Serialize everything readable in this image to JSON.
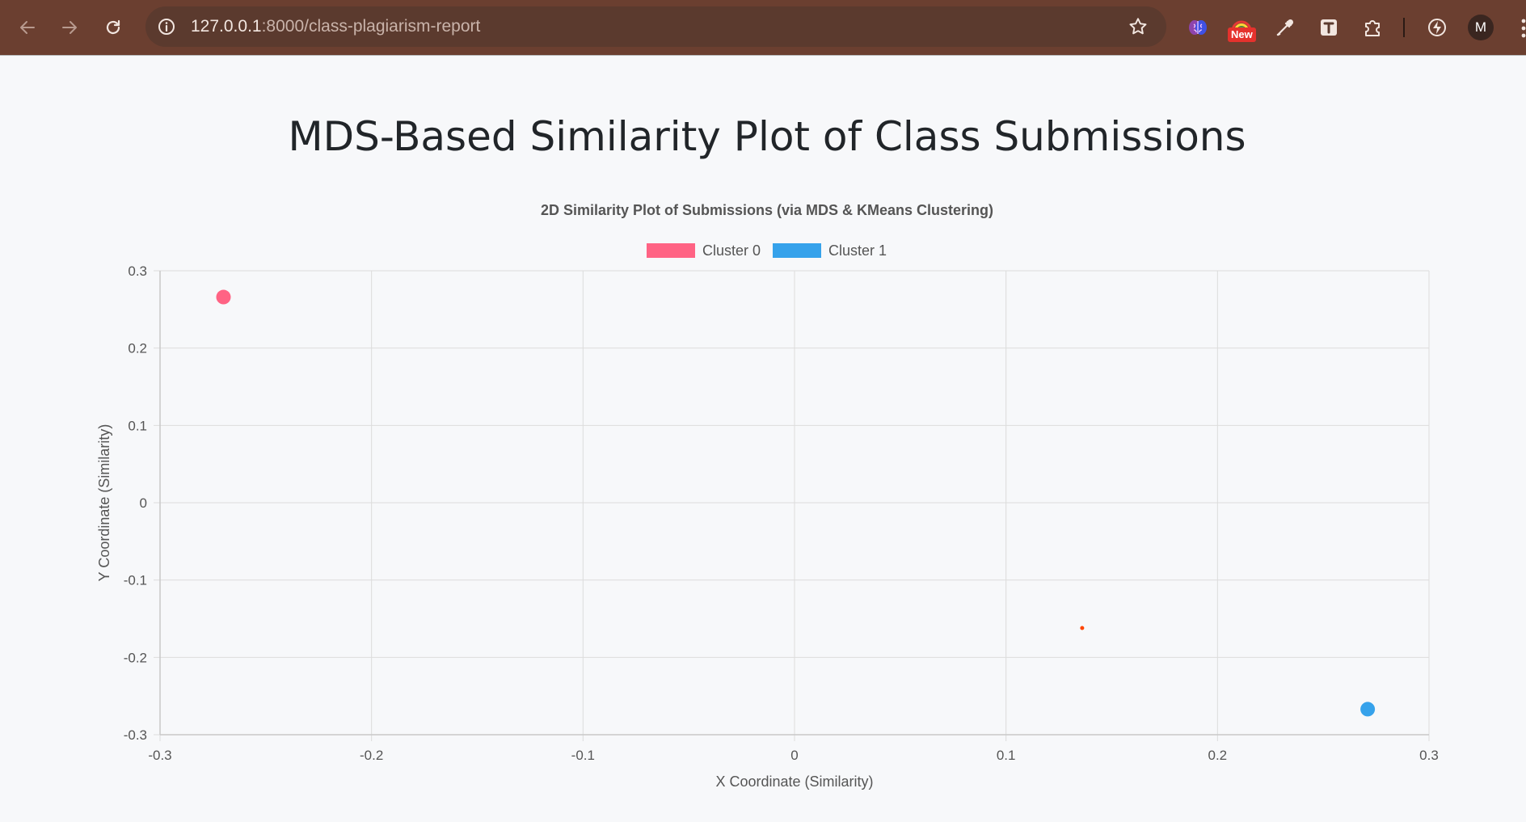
{
  "browser": {
    "url_host": "127.0.0.1",
    "url_path": ":8000/class-plagiarism-report",
    "badge_new": "New",
    "avatar_letter": "M"
  },
  "page": {
    "title": "MDS-Based Similarity Plot of Class Submissions"
  },
  "chart_data": {
    "type": "scatter",
    "title": "2D Similarity Plot of Submissions (via MDS & KMeans Clustering)",
    "xlabel": "X Coordinate (Similarity)",
    "ylabel": "Y Coordinate (Similarity)",
    "xlim": [
      -0.3,
      0.3
    ],
    "ylim": [
      -0.3,
      0.3
    ],
    "x_ticks": [
      "-0.3",
      "-0.2",
      "-0.1",
      "0",
      "0.1",
      "0.2",
      "0.3"
    ],
    "y_ticks": [
      "0.3",
      "0.2",
      "0.1",
      "0",
      "-0.1",
      "-0.2",
      "-0.3"
    ],
    "grid": true,
    "legend_position": "top",
    "series": [
      {
        "name": "Cluster 0",
        "color": "#ff6384",
        "points": [
          {
            "x": -0.27,
            "y": 0.266
          }
        ]
      },
      {
        "name": "Cluster 1",
        "color": "#36a2eb",
        "points": [
          {
            "x": 0.271,
            "y": -0.267
          }
        ]
      }
    ],
    "extra_points": [
      {
        "x": 0.136,
        "y": -0.162,
        "color": "#ff4500"
      }
    ]
  }
}
